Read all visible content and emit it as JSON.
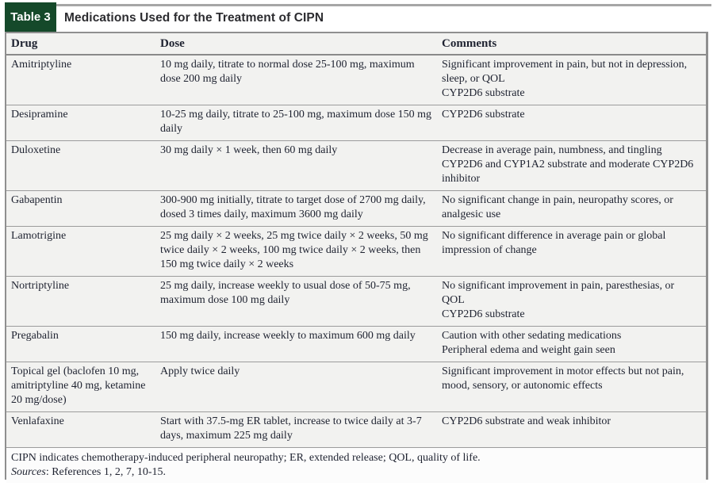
{
  "colors": {
    "tab_green": "#15492a",
    "row_background": "#f2f2f0",
    "footnote_background": "#fcfcfc",
    "border_gray": "#8f8f8f"
  },
  "header": {
    "tab_label": "Table 3",
    "title": "Medications Used for the Treatment of CIPN"
  },
  "table": {
    "columns": [
      "Drug",
      "Dose",
      "Comments"
    ],
    "rows": [
      {
        "drug": "Amitriptyline",
        "dose": "10 mg daily, titrate to normal dose 25-100 mg, maximum dose 200 mg daily",
        "comments": [
          "Significant improvement in pain, but not in depression, sleep, or QOL",
          "CYP2D6 substrate"
        ]
      },
      {
        "drug": "Desipramine",
        "dose": "10-25 mg daily, titrate to 25-100 mg, maximum dose 150 mg daily",
        "comments": [
          "CYP2D6 substrate"
        ]
      },
      {
        "drug": "Duloxetine",
        "dose": "30 mg daily × 1 week, then 60 mg daily",
        "comments": [
          "Decrease in average pain, numbness, and tingling",
          "CYP2D6 and CYP1A2 substrate and moderate CYP2D6 inhibitor"
        ]
      },
      {
        "drug": "Gabapentin",
        "dose": "300-900 mg initially, titrate to target dose of 2700 mg daily, dosed 3 times daily, maximum 3600 mg daily",
        "comments": [
          "No significant change in pain, neuropathy scores, or analgesic use"
        ]
      },
      {
        "drug": "Lamotrigine",
        "dose": "25 mg daily × 2 weeks, 25 mg twice daily × 2 weeks, 50 mg twice daily × 2 weeks, 100 mg twice daily × 2 weeks, then 150 mg twice daily × 2 weeks",
        "comments": [
          "No significant difference in average pain or global impression of change"
        ]
      },
      {
        "drug": "Nortriptyline",
        "dose": "25 mg daily, increase weekly to usual dose of 50-75 mg, maximum dose 100 mg daily",
        "comments": [
          "No significant improvement in pain, paresthesias, or QOL",
          "CYP2D6 substrate"
        ]
      },
      {
        "drug": "Pregabalin",
        "dose": "150 mg daily, increase weekly to maximum 600 mg daily",
        "comments": [
          "Caution with other sedating medications",
          "Peripheral edema and weight gain seen"
        ]
      },
      {
        "drug": "Topical gel (baclofen 10 mg, amitriptyline 40 mg, ketamine 20 mg/dose)",
        "dose": "Apply twice daily",
        "comments": [
          "Significant improvement in motor effects but not pain, mood, sensory, or autonomic effects"
        ]
      },
      {
        "drug": "Venlafaxine",
        "dose": "Start with 37.5-mg ER tablet, increase to twice daily at 3-7 days, maximum 225 mg daily",
        "comments": [
          "CYP2D6 substrate and weak inhibitor"
        ]
      }
    ]
  },
  "footnote": {
    "line1": "CIPN indicates chemotherapy-induced peripheral neuropathy; ER, extended release; QOL, quality of life.",
    "sources_label": "Sources",
    "sources_rest": ": References 1, 2, 7, 10-15."
  }
}
